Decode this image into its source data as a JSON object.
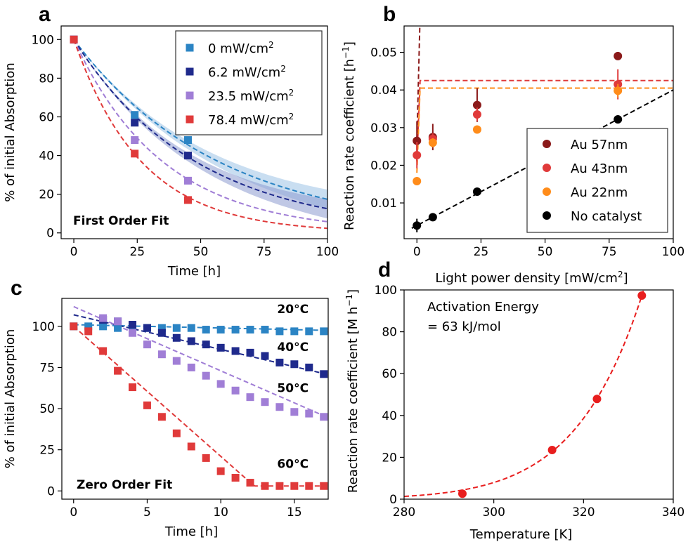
{
  "chart_data": [
    {
      "panel": "a",
      "type": "scatter",
      "xlabel": "Time [h]",
      "ylabel": "% of initial Absorption",
      "xlim": [
        -5,
        100
      ],
      "ylim": [
        -3,
        107
      ],
      "xticks": [
        0,
        25,
        50,
        75,
        100
      ],
      "yticks": [
        0,
        20,
        40,
        60,
        80,
        100
      ],
      "annotation": "First Order Fit",
      "legend_position": "upper right",
      "fit": "first-order exponential (dashed), shaded band on 0 and 6.2 mW/cm² fits",
      "series": [
        {
          "name": "0 mW/cm",
          "sup": "2",
          "color": "#2b84c4",
          "x": [
            0,
            24,
            45
          ],
          "y": [
            100,
            61,
            48
          ],
          "k": 0.0175,
          "band": true,
          "band_color": "#9cc2e6"
        },
        {
          "name": "6.2 mW/cm",
          "sup": "2",
          "color": "#1f2a8c",
          "x": [
            0,
            24,
            45
          ],
          "y": [
            100,
            57,
            40
          ],
          "k": 0.0208,
          "band": true,
          "band_color": "#8c9ad0"
        },
        {
          "name": "23.5 mW/cm",
          "sup": "2",
          "color": "#a07ed6",
          "x": [
            0,
            24,
            45
          ],
          "y": [
            100,
            48,
            27
          ],
          "k": 0.0285,
          "band": false
        },
        {
          "name": "78.4 mW/cm",
          "sup": "2",
          "color": "#e03a3a",
          "x": [
            0,
            24,
            45
          ],
          "y": [
            100,
            41,
            17
          ],
          "k": 0.0375,
          "band": false
        }
      ]
    },
    {
      "panel": "b",
      "type": "scatter",
      "xlabel_pre": "Light power density [mW/cm",
      "xlabel_sup": "2",
      "xlabel_post": "]",
      "ylabel_pre": "Reaction rate coefficient [h",
      "ylabel_sup": "−1",
      "ylabel_post": "]",
      "xlim": [
        -5,
        100
      ],
      "ylim": [
        0.0005,
        0.057
      ],
      "xticks": [
        0,
        25,
        50,
        75,
        100
      ],
      "yticks": [
        0.01,
        0.02,
        0.03,
        0.04,
        0.05
      ],
      "ytick_labels": [
        "0.01",
        "0.02",
        "0.03",
        "0.04",
        "0.05"
      ],
      "legend_position": "lower right",
      "series": [
        {
          "name": "Au 57nm",
          "color": "#8b1a1a",
          "x": [
            0,
            6.2,
            23.5,
            78.4
          ],
          "y": [
            0.0265,
            0.0275,
            0.036,
            0.049
          ],
          "err": [
            0.0052,
            0.0035,
            0.0045,
            0
          ],
          "fit": {
            "kind": "sat",
            "a": 0.0265,
            "b": 0.0335,
            "c": 0.018
          }
        },
        {
          "name": "Au 43nm",
          "color": "#e03a3a",
          "x": [
            0,
            6.2,
            23.5,
            78.4
          ],
          "y": [
            0.0227,
            0.027,
            0.0335,
            0.0415
          ],
          "err": [
            0.0035,
            0.0015,
            0.0018,
            0.004
          ],
          "fit": {
            "kind": "sat",
            "a": 0.021,
            "b": 0.0215,
            "c": 0.04
          }
        },
        {
          "name": "Au 22nm",
          "color": "#ff8c1a",
          "x": [
            0,
            6.2,
            23.5,
            78.4
          ],
          "y": [
            0.0158,
            0.026,
            0.0295,
            0.0398
          ],
          "err": [
            0,
            0.0012,
            0,
            0.0018
          ],
          "fit": {
            "kind": "sat",
            "a": 0.018,
            "b": 0.0225,
            "c": 0.04
          }
        },
        {
          "name": "No catalyst",
          "color": "#000000",
          "x": [
            0,
            6.2,
            23.5,
            78.4
          ],
          "y": [
            0.004,
            0.0062,
            0.013,
            0.0322
          ],
          "err": [
            0.0018,
            0.0005,
            0.0008,
            0.0007
          ],
          "fit": {
            "kind": "lin",
            "m": 0.00036,
            "c": 0.004
          }
        }
      ]
    },
    {
      "panel": "c",
      "type": "scatter",
      "xlabel": "Time [h]",
      "ylabel": "% of initial Absorption",
      "xlim": [
        -0.8,
        17.3
      ],
      "ylim": [
        -5,
        117
      ],
      "xticks": [
        0,
        5,
        10,
        15
      ],
      "yticks": [
        0,
        25,
        50,
        75,
        100
      ],
      "annotation": "Zero Order Fit",
      "fit": "zero-order linear (dashed)",
      "series": [
        {
          "name": "20°C",
          "color": "#2b84c4",
          "x": [
            0,
            1,
            2,
            3,
            4,
            5,
            6,
            7,
            8,
            9,
            10,
            11,
            12,
            13,
            14,
            15,
            16,
            17
          ],
          "y": [
            100,
            100,
            100,
            99,
            99,
            99,
            99,
            99,
            99,
            98,
            98,
            98,
            98,
            98,
            97,
            97,
            97,
            97
          ],
          "fit": {
            "kind": "lin",
            "m": -0.2,
            "c": 101
          }
        },
        {
          "name": "40°C",
          "color": "#1f2a8c",
          "x": [
            2,
            3,
            4,
            5,
            6,
            7,
            8,
            9,
            10,
            11,
            12,
            13,
            14,
            15,
            16,
            17
          ],
          "y": [
            104,
            103,
            101,
            99,
            96,
            93,
            91,
            89,
            87,
            85,
            84,
            82,
            78,
            77,
            75,
            71
          ],
          "fit": {
            "kind": "lin",
            "m": -2.1,
            "c": 107
          }
        },
        {
          "name": "50°C",
          "color": "#a07ed6",
          "x": [
            2,
            3,
            4,
            5,
            6,
            7,
            8,
            9,
            10,
            11,
            12,
            13,
            14,
            15,
            16,
            17
          ],
          "y": [
            105,
            103,
            96,
            89,
            83,
            79,
            75,
            70,
            65,
            61,
            57,
            54,
            51,
            48,
            47,
            45
          ],
          "fit": {
            "kind": "lin",
            "m": -3.9,
            "c": 112
          }
        },
        {
          "name": "60°C",
          "color": "#e03a3a",
          "x": [
            0,
            1,
            2,
            3,
            4,
            5,
            6,
            7,
            8,
            9,
            10,
            11,
            12,
            13,
            14,
            15,
            16,
            17
          ],
          "y": [
            100,
            97,
            85,
            73,
            63,
            52,
            45,
            35,
            27,
            20,
            12,
            8,
            5,
            3,
            3,
            3,
            3,
            3
          ],
          "fit": {
            "kind": "seg",
            "m": -7.9,
            "c": 100,
            "floor": 3
          }
        }
      ],
      "labels": [
        {
          "text": "20°C",
          "x": 14.9,
          "y": 108
        },
        {
          "text": "40°C",
          "x": 14.9,
          "y": 85
        },
        {
          "text": "50°C",
          "x": 14.9,
          "y": 60
        },
        {
          "text": "60°C",
          "x": 14.9,
          "y": 14
        }
      ]
    },
    {
      "panel": "d",
      "type": "scatter",
      "xlabel": "Temperature [K]",
      "ylabel_pre": "Reaction rate coefficient [M h",
      "ylabel_sup": "−1",
      "ylabel_post": "]",
      "xlim": [
        280,
        340
      ],
      "ylim": [
        0,
        100
      ],
      "xticks": [
        280,
        300,
        320,
        340
      ],
      "yticks": [
        0,
        20,
        40,
        60,
        80,
        100
      ],
      "annotation_line1": "Activation Energy",
      "annotation_line2": "= 63 kJ/mol",
      "series": [
        {
          "name": "",
          "color": "#e81e1e",
          "x": [
            293,
            313,
            323,
            333
          ],
          "y": [
            2.6,
            23.5,
            47.9,
            97.3
          ],
          "fit": {
            "kind": "arrhenius",
            "Ea": 63000,
            "Tref": 333,
            "yref": 97.3
          }
        }
      ]
    }
  ],
  "panel_letters": [
    "a",
    "b",
    "c",
    "d"
  ]
}
